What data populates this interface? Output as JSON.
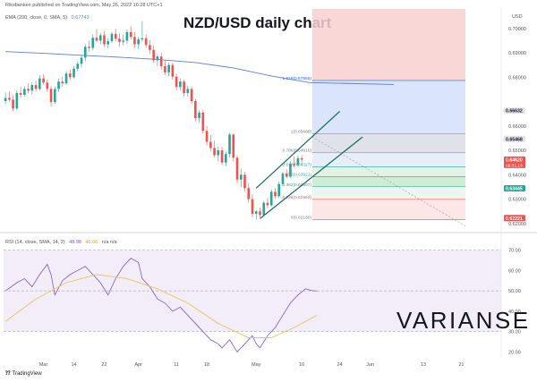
{
  "header": {
    "publisher": "Riksbanken published on TradingView.com, May 26, 2022 16:28 UTC+1",
    "ema_label": "EMA (200, close, 0, SMA, 5)",
    "ema_value": "0.67743",
    "currency": "USD"
  },
  "title": "NZD/USD daily chart",
  "watermark": "VARIANSE",
  "tradingview_logo": "TradingView",
  "colors": {
    "up_candle": "#26a69a",
    "down_candle": "#ef5350",
    "ema_line": "#5b7fd3",
    "rsi_line": "#7e57c2",
    "rsi_sma_line": "#e6c65c",
    "channel_line": "#1f6f67",
    "projection_red_zone": "#f9d0d0",
    "projection_blue_zone": "#d6e1fb"
  },
  "price_axis": {
    "ticks": [
      "0.70000",
      "0.69000",
      "0.68000",
      "0.66000",
      "0.65000",
      "0.64000",
      "0.63000",
      "0.62000"
    ],
    "badges": [
      {
        "label": "0.66632",
        "kind": "grey"
      },
      {
        "label": "0.65468",
        "kind": "grey"
      },
      {
        "label": "0.64620",
        "sublabel": "09:31:13",
        "kind": "red"
      },
      {
        "label": "0.63445",
        "kind": "green"
      },
      {
        "label": "0.62221",
        "kind": "red"
      }
    ]
  },
  "fib_levels": [
    {
      "label": "1.618(0.67865)"
    },
    {
      "label": "1(0.65686)"
    },
    {
      "label": "0.786(0.64915)"
    },
    {
      "label": "0.618(0.64327)"
    },
    {
      "label": "0.5(0.63921)"
    },
    {
      "label": "0.382(0.63507)"
    },
    {
      "label": "0.236(0.62992)"
    },
    {
      "label": "0(0.62160)"
    }
  ],
  "rsi": {
    "label": "RSI (14, close, SMA, 14, 2)",
    "value": "48.98",
    "sma_value": "46.66",
    "na": "n/a  n/a",
    "ticks": [
      "70.00",
      "60.00",
      "50.00",
      "40.00",
      "30.00",
      "20.00"
    ]
  },
  "time_axis": {
    "labels": [
      "Mar",
      "14",
      "22",
      "Apr",
      "11",
      "18",
      "May",
      "16",
      "24",
      "Jun",
      "13",
      "21"
    ]
  },
  "chart_data": {
    "type": "candlestick",
    "title": "NZD/USD daily chart",
    "symbol": "NZD/USD",
    "ylim": [
      0.617,
      0.708
    ],
    "candles": [
      [
        0.6702,
        0.6738,
        0.669,
        0.6715
      ],
      [
        0.6715,
        0.6742,
        0.67,
        0.6708
      ],
      [
        0.6708,
        0.6725,
        0.6662,
        0.6672
      ],
      [
        0.6672,
        0.6745,
        0.6665,
        0.6735
      ],
      [
        0.6735,
        0.676,
        0.6715,
        0.6728
      ],
      [
        0.6728,
        0.6762,
        0.672,
        0.6752
      ],
      [
        0.6752,
        0.6775,
        0.6735,
        0.6745
      ],
      [
        0.6745,
        0.6778,
        0.673,
        0.6768
      ],
      [
        0.6768,
        0.6785,
        0.674,
        0.6752
      ],
      [
        0.6752,
        0.6808,
        0.6745,
        0.6795
      ],
      [
        0.6795,
        0.6812,
        0.677,
        0.6778
      ],
      [
        0.6778,
        0.679,
        0.674,
        0.6752
      ],
      [
        0.6752,
        0.6765,
        0.668,
        0.6698
      ],
      [
        0.6698,
        0.6762,
        0.669,
        0.6752
      ],
      [
        0.6752,
        0.6795,
        0.674,
        0.6782
      ],
      [
        0.6782,
        0.6802,
        0.6762,
        0.6775
      ],
      [
        0.6775,
        0.6825,
        0.6768,
        0.6815
      ],
      [
        0.6815,
        0.6832,
        0.679,
        0.68
      ],
      [
        0.68,
        0.6845,
        0.6795,
        0.6835
      ],
      [
        0.6835,
        0.6865,
        0.6825,
        0.6855
      ],
      [
        0.6855,
        0.689,
        0.684,
        0.688
      ],
      [
        0.688,
        0.6935,
        0.6865,
        0.6925
      ],
      [
        0.6925,
        0.695,
        0.6905,
        0.692
      ],
      [
        0.692,
        0.6975,
        0.691,
        0.6962
      ],
      [
        0.6962,
        0.6998,
        0.6945,
        0.695
      ],
      [
        0.695,
        0.6982,
        0.6935,
        0.6972
      ],
      [
        0.6972,
        0.699,
        0.6925,
        0.6935
      ],
      [
        0.6935,
        0.696,
        0.692,
        0.6948
      ],
      [
        0.6948,
        0.6985,
        0.694,
        0.6978
      ],
      [
        0.6978,
        0.7,
        0.6948,
        0.6958
      ],
      [
        0.6958,
        0.698,
        0.6925,
        0.6945
      ],
      [
        0.6945,
        0.6975,
        0.693,
        0.695
      ],
      [
        0.695,
        0.6995,
        0.6935,
        0.6985
      ],
      [
        0.6985,
        0.701,
        0.6955,
        0.6965
      ],
      [
        0.6965,
        0.6985,
        0.692,
        0.6935
      ],
      [
        0.6935,
        0.6965,
        0.6915,
        0.6955
      ],
      [
        0.6955,
        0.703,
        0.6945,
        0.696
      ],
      [
        0.696,
        0.6975,
        0.692,
        0.6932
      ],
      [
        0.6932,
        0.6952,
        0.6895,
        0.6912
      ],
      [
        0.6912,
        0.693,
        0.686,
        0.687
      ],
      [
        0.687,
        0.6895,
        0.6845,
        0.6885
      ],
      [
        0.6885,
        0.69,
        0.683,
        0.6845
      ],
      [
        0.6845,
        0.687,
        0.681,
        0.682
      ],
      [
        0.682,
        0.686,
        0.6805,
        0.685
      ],
      [
        0.685,
        0.686,
        0.679,
        0.6802
      ],
      [
        0.6802,
        0.6815,
        0.6745,
        0.676
      ],
      [
        0.676,
        0.6795,
        0.6745,
        0.6782
      ],
      [
        0.6782,
        0.679,
        0.672,
        0.6735
      ],
      [
        0.6735,
        0.6765,
        0.672,
        0.6752
      ],
      [
        0.6752,
        0.6762,
        0.669,
        0.6702
      ],
      [
        0.6702,
        0.671,
        0.662,
        0.6632
      ],
      [
        0.6632,
        0.6665,
        0.6615,
        0.6655
      ],
      [
        0.6655,
        0.6665,
        0.657,
        0.658
      ],
      [
        0.658,
        0.66,
        0.652,
        0.6535
      ],
      [
        0.6535,
        0.6562,
        0.6495,
        0.651
      ],
      [
        0.651,
        0.654,
        0.647,
        0.648
      ],
      [
        0.648,
        0.6515,
        0.6455,
        0.65
      ],
      [
        0.65,
        0.6515,
        0.644,
        0.645
      ],
      [
        0.645,
        0.6495,
        0.6435,
        0.6485
      ],
      [
        0.6485,
        0.6572,
        0.647,
        0.6565
      ],
      [
        0.6565,
        0.6568,
        0.6455,
        0.647
      ],
      [
        0.647,
        0.648,
        0.6365,
        0.638
      ],
      [
        0.638,
        0.6425,
        0.635,
        0.64
      ],
      [
        0.64,
        0.6412,
        0.633,
        0.6345
      ],
      [
        0.6345,
        0.6365,
        0.6285,
        0.63
      ],
      [
        0.63,
        0.632,
        0.6225,
        0.624
      ],
      [
        0.624,
        0.6255,
        0.6216,
        0.625
      ],
      [
        0.625,
        0.6265,
        0.6225,
        0.6235
      ],
      [
        0.6235,
        0.6292,
        0.623,
        0.6285
      ],
      [
        0.6285,
        0.6305,
        0.6262,
        0.6275
      ],
      [
        0.6275,
        0.634,
        0.6268,
        0.633
      ],
      [
        0.633,
        0.6345,
        0.63,
        0.6312
      ],
      [
        0.6312,
        0.6372,
        0.6305,
        0.6362
      ],
      [
        0.6362,
        0.6412,
        0.6352,
        0.6405
      ],
      [
        0.6405,
        0.6422,
        0.6385,
        0.6392
      ],
      [
        0.6392,
        0.6455,
        0.6385,
        0.6445
      ],
      [
        0.6445,
        0.6475,
        0.643,
        0.644
      ],
      [
        0.644,
        0.6478,
        0.6432,
        0.6468
      ],
      [
        0.6468,
        0.648,
        0.644,
        0.6462
      ]
    ],
    "ema_200": [
      [
        0,
        0.6905
      ],
      [
        10,
        0.6898
      ],
      [
        20,
        0.689
      ],
      [
        30,
        0.6882
      ],
      [
        40,
        0.6873
      ],
      [
        50,
        0.686
      ],
      [
        60,
        0.6838
      ],
      [
        70,
        0.6805
      ],
      [
        80,
        0.6778
      ]
    ],
    "fibonacci": [
      {
        "ratio": 1.618,
        "price": 0.67865
      },
      {
        "ratio": 1,
        "price": 0.65686
      },
      {
        "ratio": 0.786,
        "price": 0.64915
      },
      {
        "ratio": 0.618,
        "price": 0.64327
      },
      {
        "ratio": 0.5,
        "price": 0.63921
      },
      {
        "ratio": 0.382,
        "price": 0.63507
      },
      {
        "ratio": 0.236,
        "price": 0.62992
      },
      {
        "ratio": 0,
        "price": 0.6216
      }
    ],
    "channel": {
      "upper": [
        [
          66,
          0.6345
        ],
        [
          88,
          0.666
        ]
      ],
      "lower": [
        [
          67,
          0.622
        ],
        [
          94,
          0.6555
        ]
      ]
    },
    "rsi_values": [
      [
        0,
        50
      ],
      [
        3,
        54
      ],
      [
        5,
        56
      ],
      [
        7,
        52
      ],
      [
        9,
        58
      ],
      [
        11,
        63
      ],
      [
        12,
        58
      ],
      [
        13,
        48
      ],
      [
        15,
        55
      ],
      [
        17,
        58
      ],
      [
        19,
        60
      ],
      [
        21,
        62
      ],
      [
        23,
        58
      ],
      [
        25,
        54
      ],
      [
        27,
        48
      ],
      [
        29,
        56
      ],
      [
        31,
        62
      ],
      [
        33,
        66
      ],
      [
        35,
        64
      ],
      [
        36,
        56
      ],
      [
        38,
        52
      ],
      [
        40,
        46
      ],
      [
        42,
        44
      ],
      [
        44,
        40
      ],
      [
        46,
        42
      ],
      [
        48,
        38
      ],
      [
        50,
        34
      ],
      [
        52,
        30
      ],
      [
        54,
        26
      ],
      [
        56,
        24
      ],
      [
        57,
        22
      ],
      [
        59,
        26
      ],
      [
        61,
        20
      ],
      [
        63,
        24
      ],
      [
        65,
        28
      ],
      [
        66,
        24
      ],
      [
        67,
        22
      ],
      [
        69,
        28
      ],
      [
        71,
        32
      ],
      [
        73,
        38
      ],
      [
        75,
        44
      ],
      [
        77,
        48
      ],
      [
        79,
        51
      ],
      [
        81,
        50
      ],
      [
        82,
        50
      ]
    ],
    "rsi_sma_values": [
      [
        0,
        35
      ],
      [
        8,
        46
      ],
      [
        16,
        54
      ],
      [
        24,
        58
      ],
      [
        32,
        56
      ],
      [
        40,
        51
      ],
      [
        48,
        44
      ],
      [
        56,
        34
      ],
      [
        64,
        27
      ],
      [
        70,
        27
      ],
      [
        76,
        32
      ],
      [
        82,
        38
      ]
    ],
    "rsi_ylim": [
      18,
      72
    ]
  }
}
